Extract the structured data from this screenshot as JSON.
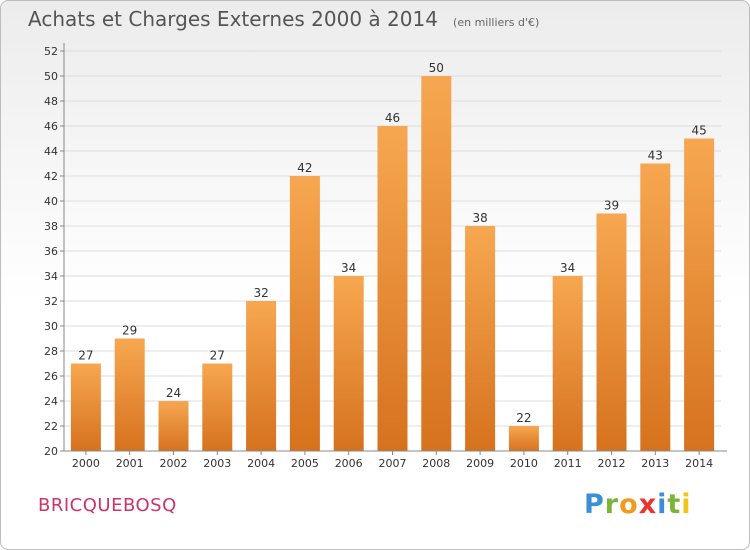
{
  "chart_data": {
    "type": "bar",
    "title": "Achats et Charges Externes 2000 à 2014",
    "subtitle": "(en milliers d'€)",
    "categories": [
      "2000",
      "2001",
      "2002",
      "2003",
      "2004",
      "2005",
      "2006",
      "2007",
      "2008",
      "2009",
      "2010",
      "2011",
      "2012",
      "2013",
      "2014"
    ],
    "values": [
      27,
      29,
      24,
      27,
      32,
      42,
      34,
      46,
      50,
      38,
      22,
      34,
      39,
      43,
      45
    ],
    "ylim": [
      20,
      52
    ],
    "yticks": [
      20,
      22,
      24,
      26,
      28,
      30,
      32,
      34,
      36,
      38,
      40,
      42,
      44,
      46,
      48,
      50,
      52
    ],
    "grid": true,
    "bar_color_top": "#f7a751",
    "bar_color_bottom": "#d6721e"
  },
  "footer": {
    "commune": "BRICQUEBOSQ",
    "logo": "Proxiti"
  }
}
